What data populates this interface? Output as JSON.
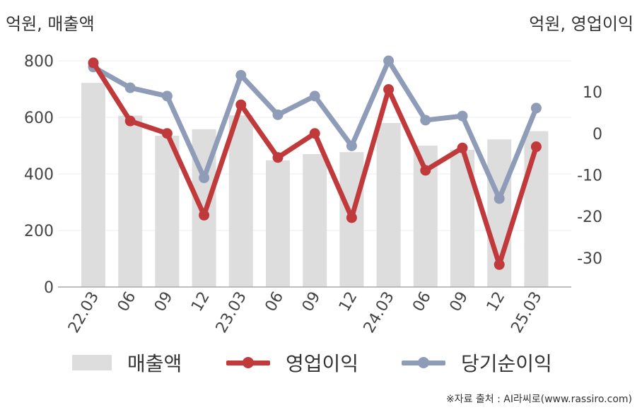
{
  "left_unit": "억원, 매출액",
  "right_unit": "억원, 영업이익",
  "source": "※자료 출처 : AI라씨로(www.rassiro.com)",
  "chart_data": {
    "type": "bar+line",
    "categories": [
      "22.03",
      "06",
      "09",
      "12",
      "23.03",
      "06",
      "09",
      "12",
      "24.03",
      "06",
      "09",
      "12",
      "25.03"
    ],
    "left_axis": {
      "ylim": [
        0,
        800
      ],
      "ticks": [
        0,
        200,
        400,
        600,
        800
      ]
    },
    "right_axis": {
      "ylim": [
        -37,
        17.5
      ],
      "ticks": [
        10,
        0,
        -10,
        -20,
        -30
      ],
      "tick_labels": [
        "10",
        "0",
        "-10",
        "-20",
        "-30"
      ]
    },
    "series": [
      {
        "name": "매출액",
        "type": "bar",
        "axis": "left",
        "color": "#dddddd",
        "values": [
          722,
          606,
          535,
          558,
          607,
          448,
          470,
          477,
          580,
          500,
          485,
          522,
          551
        ]
      },
      {
        "name": "영업이익",
        "type": "line",
        "axis": "right",
        "color": "#c0393b",
        "values": [
          17.0,
          3.0,
          0.0,
          -19.7,
          6.9,
          -5.8,
          0.0,
          -20.3,
          10.6,
          -8.9,
          -3.5,
          -31.6,
          -3.2
        ]
      },
      {
        "name": "당기순이익",
        "type": "line",
        "axis": "right",
        "color": "#8f9cb7",
        "values": [
          16.0,
          11.0,
          9.0,
          -10.7,
          14.0,
          4.5,
          9.0,
          -3.0,
          17.5,
          3.2,
          4.2,
          -15.7,
          6.1
        ]
      }
    ],
    "grid": true,
    "legend_position": "bottom"
  }
}
